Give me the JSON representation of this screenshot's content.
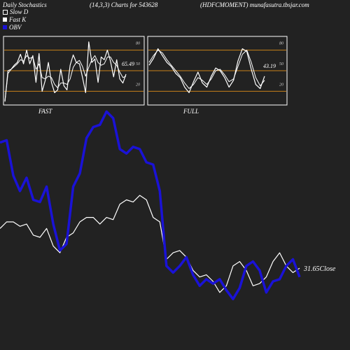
{
  "header": {
    "left": "Daily Stochastics",
    "center": "(14,3,3) Charts for 543628",
    "right": "(HDFCMOMENT) munafasutra.tbsjar.com"
  },
  "legend": [
    {
      "label": "Slow  D",
      "color": "#ffffff",
      "outline": true
    },
    {
      "label": "Fast K",
      "color": "#ffffff",
      "outline": false
    },
    {
      "label": "OBV",
      "color": "#1a12d6",
      "outline": false
    }
  ],
  "colors": {
    "background": "#222222",
    "orange": "#c8811a",
    "blue": "#1a12d6",
    "white": "#ffffff"
  },
  "chart_data": [
    {
      "type": "line",
      "title": "FAST",
      "ylim": [
        0,
        100
      ],
      "y_ticks": [
        "80",
        "50",
        "20"
      ],
      "y_tick_values": [
        80,
        50,
        20
      ],
      "last_value_label": "65.49",
      "series": [
        {
          "name": "Fast K",
          "values": [
            5,
            50,
            52,
            58,
            62,
            74,
            60,
            80,
            60,
            72,
            33,
            75,
            20,
            36,
            62,
            33,
            18,
            22,
            52,
            28,
            22,
            58,
            73,
            62,
            60,
            40,
            18,
            92,
            62,
            67,
            33,
            70,
            66,
            80,
            64,
            41,
            66,
            38,
            32,
            45
          ]
        },
        {
          "name": "Slow  D",
          "values": [
            5,
            46,
            52,
            56,
            60,
            66,
            64,
            72,
            68,
            70,
            52,
            60,
            40,
            38,
            42,
            40,
            30,
            25,
            32,
            32,
            30,
            38,
            55,
            62,
            65,
            56,
            42,
            55,
            66,
            72,
            62,
            58,
            60,
            70,
            70,
            62,
            58,
            48,
            40,
            42
          ]
        }
      ]
    },
    {
      "type": "line",
      "title": "FULL",
      "ylim": [
        0,
        100
      ],
      "y_ticks": [
        "80",
        "50",
        "20"
      ],
      "y_tick_values": [
        80,
        50,
        20
      ],
      "last_value_label": "43.19",
      "series": [
        {
          "name": "Fast K",
          "values": [
            58,
            68,
            82,
            72,
            62,
            56,
            46,
            40,
            26,
            18,
            34,
            48,
            32,
            26,
            42,
            54,
            50,
            40,
            26,
            36,
            64,
            82,
            78,
            52,
            30,
            24,
            42
          ]
        },
        {
          "name": "Slow  D",
          "values": [
            62,
            72,
            80,
            76,
            66,
            58,
            50,
            42,
            32,
            24,
            30,
            40,
            36,
            30,
            38,
            50,
            52,
            44,
            34,
            38,
            56,
            74,
            80,
            62,
            40,
            28,
            36
          ]
        }
      ]
    },
    {
      "type": "line",
      "ylim": [
        0,
        1
      ],
      "last_value_label": "31.65Close",
      "series": [
        {
          "name": "OBV",
          "values": [
            0.83,
            0.84,
            0.68,
            0.61,
            0.67,
            0.57,
            0.56,
            0.63,
            0.46,
            0.34,
            0.37,
            0.63,
            0.69,
            0.85,
            0.9,
            0.91,
            0.97,
            0.94,
            0.8,
            0.78,
            0.81,
            0.8,
            0.74,
            0.73,
            0.61,
            0.27,
            0.24,
            0.27,
            0.31,
            0.23,
            0.18,
            0.21,
            0.19,
            0.21,
            0.16,
            0.12,
            0.17,
            0.27,
            0.29,
            0.25,
            0.15,
            0.2,
            0.21,
            0.27,
            0.3,
            0.22
          ]
        },
        {
          "name": "Close",
          "values": [
            0.44,
            0.47,
            0.47,
            0.45,
            0.46,
            0.41,
            0.4,
            0.44,
            0.36,
            0.33,
            0.4,
            0.42,
            0.47,
            0.49,
            0.49,
            0.46,
            0.49,
            0.48,
            0.55,
            0.57,
            0.56,
            0.59,
            0.57,
            0.49,
            0.47,
            0.3,
            0.33,
            0.34,
            0.31,
            0.25,
            0.22,
            0.23,
            0.2,
            0.15,
            0.18,
            0.27,
            0.29,
            0.25,
            0.18,
            0.19,
            0.22,
            0.29,
            0.33,
            0.27,
            0.24,
            0.26
          ]
        }
      ]
    }
  ]
}
